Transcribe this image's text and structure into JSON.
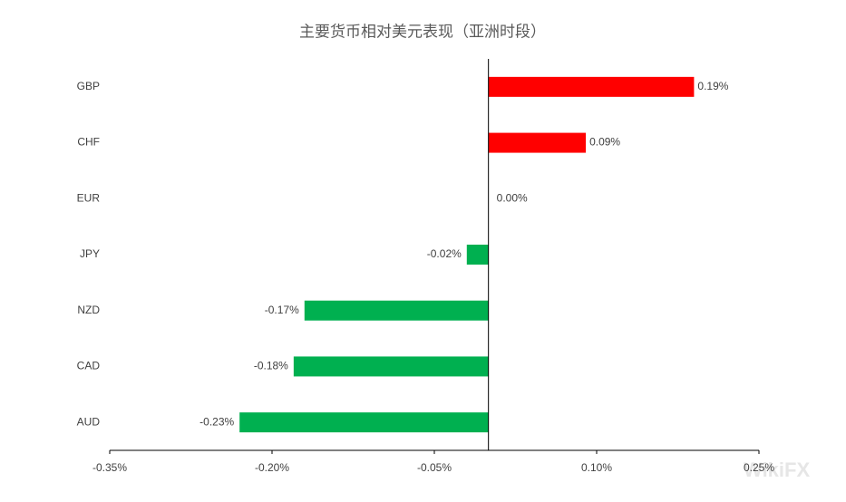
{
  "chart_data": {
    "type": "hbar",
    "title": "主要货币相对美元表现（亚洲时段）",
    "categories": [
      "GBP",
      "CHF",
      "EUR",
      "JPY",
      "NZD",
      "CAD",
      "AUD"
    ],
    "values": [
      0.19,
      0.09,
      0.0,
      -0.02,
      -0.17,
      -0.18,
      -0.23
    ],
    "value_labels": [
      "0.19%",
      "0.09%",
      "0.00%",
      "-0.02%",
      "-0.17%",
      "-0.18%",
      "-0.23%"
    ],
    "colors": [
      "#ff0000",
      "#ff0000",
      "#ff0000",
      "#00b050",
      "#00b050",
      "#00b050",
      "#00b050"
    ],
    "xlim": [
      -0.35,
      0.25
    ],
    "xticks": [
      {
        "value": -0.35,
        "label": "-0.35%"
      },
      {
        "value": -0.2,
        "label": "-0.20%"
      },
      {
        "value": -0.05,
        "label": "-0.05%"
      },
      {
        "value": 0.1,
        "label": "0.10%"
      },
      {
        "value": 0.25,
        "label": "0.25%"
      }
    ],
    "watermark": "WikiFX"
  }
}
